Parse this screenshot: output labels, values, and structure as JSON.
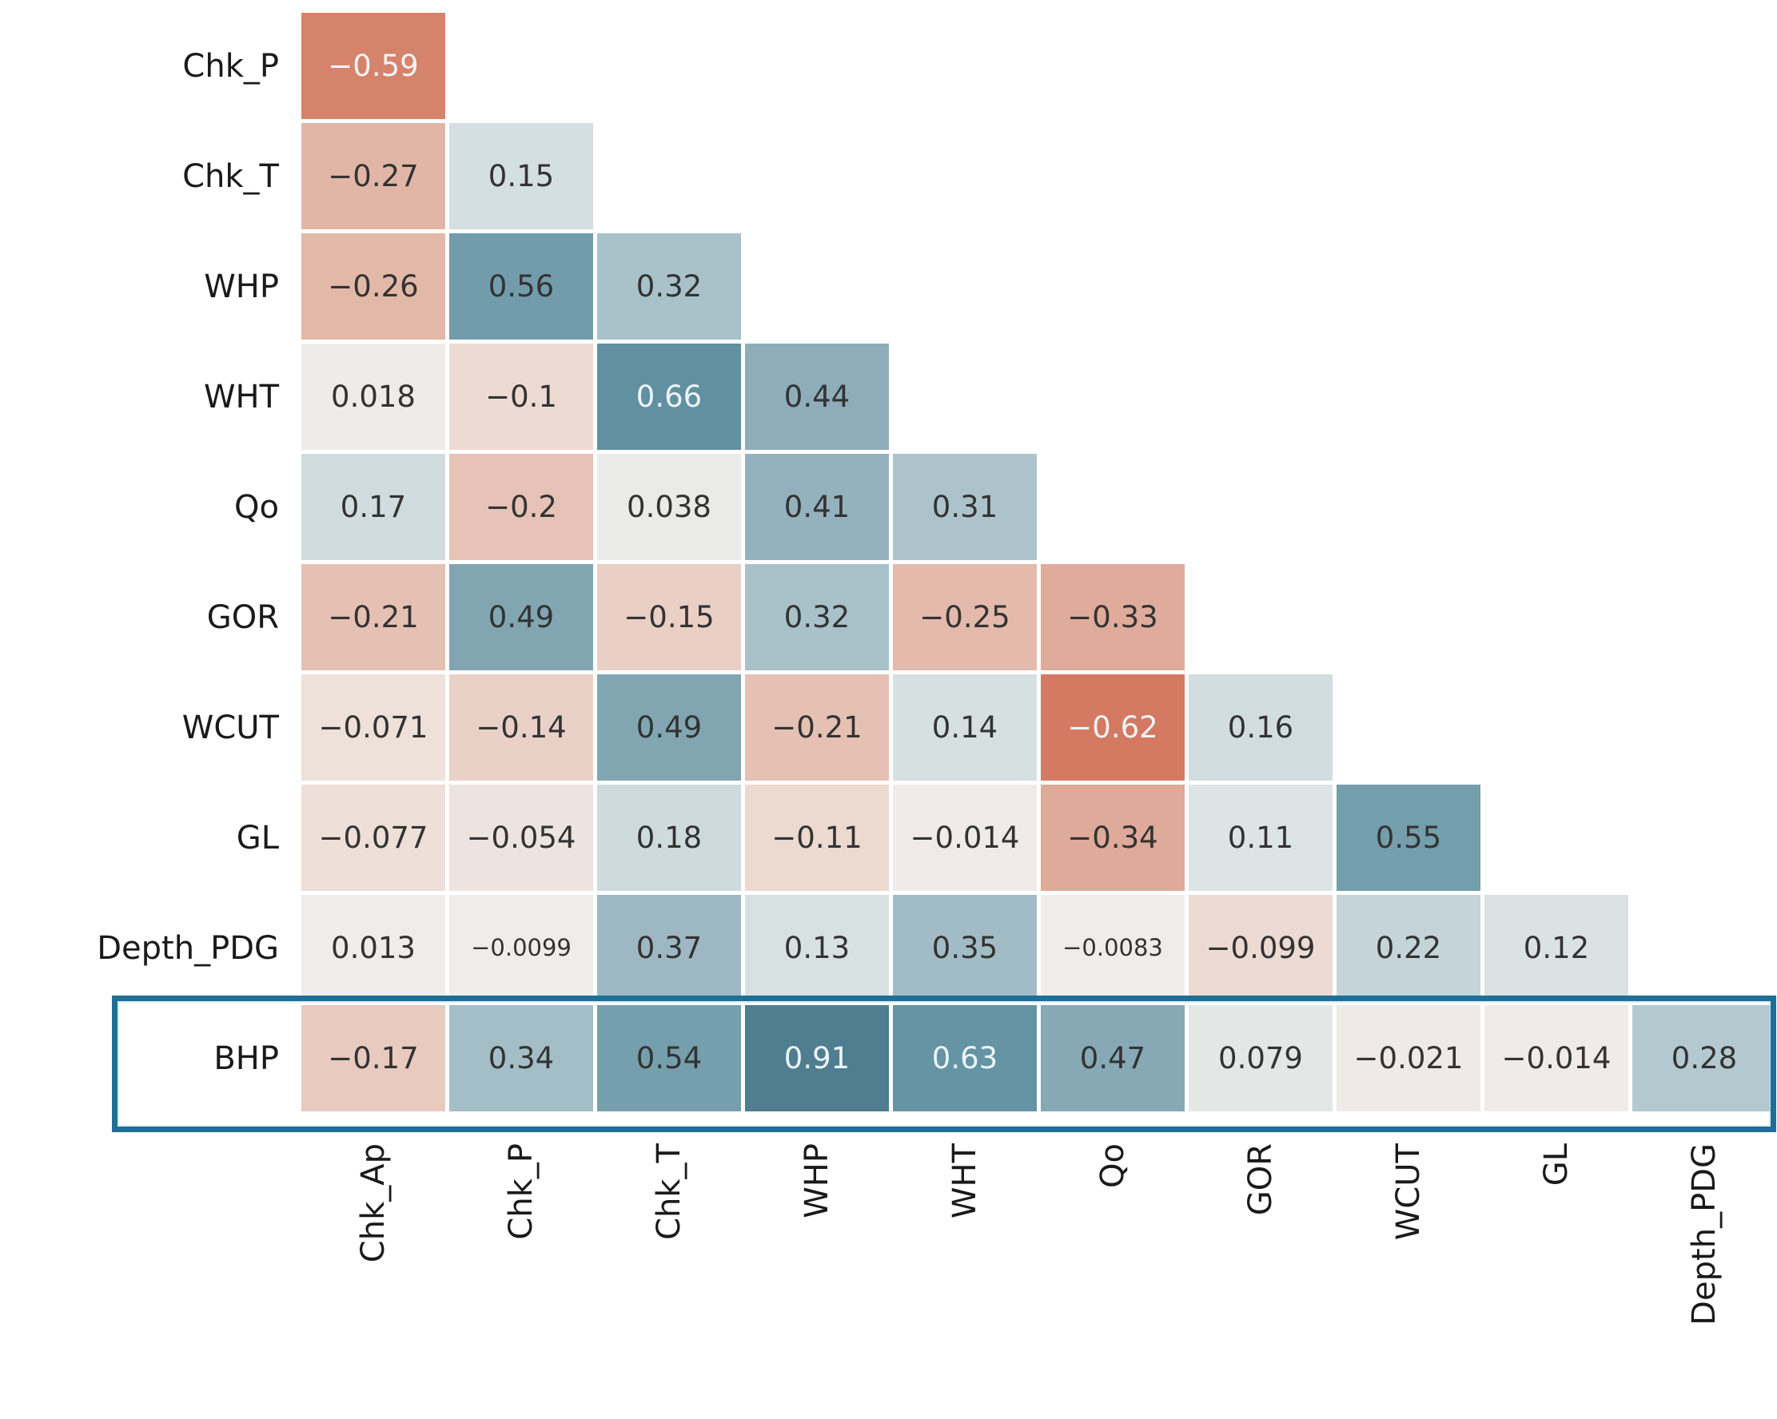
{
  "figure": {
    "background": "#ffffff",
    "annotation_dark_text_color": "#333333",
    "annotation_light_text_color": "#eef4f6",
    "highlight_border_color": "#1e6f96"
  },
  "chart_data": {
    "type": "heatmap",
    "title": "",
    "xlabel": "",
    "ylabel": "",
    "legend": "none",
    "grid": false,
    "rows": [
      "Chk_P",
      "Chk_T",
      "WHP",
      "WHT",
      "Qo",
      "GOR",
      "WCUT",
      "GL",
      "Depth_PDG",
      "BHP"
    ],
    "columns": [
      "Chk_Ap",
      "Chk_P",
      "Chk_T",
      "WHP",
      "WHT",
      "Qo",
      "GOR",
      "WCUT",
      "GL",
      "Depth_PDG"
    ],
    "values": [
      [
        "-0.59"
      ],
      [
        "-0.27",
        "0.15"
      ],
      [
        "-0.26",
        "0.56",
        "0.32"
      ],
      [
        "0.018",
        "-0.1",
        "0.66",
        "0.44"
      ],
      [
        "0.17",
        "-0.2",
        "0.038",
        "0.41",
        "0.31"
      ],
      [
        "-0.21",
        "0.49",
        "-0.15",
        "0.32",
        "-0.25",
        "-0.33"
      ],
      [
        "-0.071",
        "-0.14",
        "0.49",
        "-0.21",
        "0.14",
        "-0.62",
        "0.16"
      ],
      [
        "-0.077",
        "-0.054",
        "0.18",
        "-0.11",
        "-0.014",
        "-0.34",
        "0.11",
        "0.55"
      ],
      [
        "0.013",
        "-0.0099",
        "0.37",
        "0.13",
        "0.35",
        "-0.0083",
        "-0.099",
        "0.22",
        "0.12"
      ],
      [
        "-0.17",
        "0.34",
        "0.54",
        "0.91",
        "0.63",
        "0.47",
        "0.079",
        "-0.021",
        "-0.014",
        "0.28"
      ]
    ],
    "highlighted_row": "BHP",
    "value_range": [
      -0.62,
      0.91
    ],
    "white_text_threshold": 0.58,
    "colormap": {
      "style": "diverging",
      "negative_end": "#b44632",
      "zero": "#f0eeec",
      "positive_end": "#47788a"
    }
  }
}
